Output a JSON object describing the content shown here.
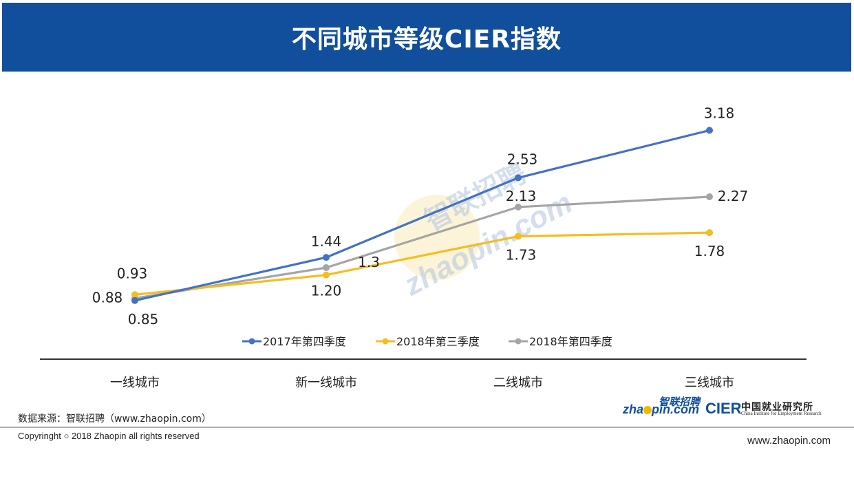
{
  "header": {
    "title": "不同城市等级CIER指数"
  },
  "colors": {
    "header_bg": "#114f9c",
    "series": [
      "#4472c4",
      "#f5bd1f",
      "#a5a5a5"
    ]
  },
  "chart_data": {
    "type": "line",
    "title": "不同城市等级CIER指数",
    "categories": [
      "一线城市",
      "新一线城市",
      "二线城市",
      "三线城市"
    ],
    "series": [
      {
        "name": "2017年第四季度",
        "values": [
          0.85,
          1.44,
          2.53,
          3.18
        ],
        "labels": [
          "0.85",
          "1.44",
          "2.53",
          "3.18"
        ]
      },
      {
        "name": "2018年第三季度",
        "values": [
          0.93,
          1.2,
          1.73,
          1.78
        ],
        "labels": [
          "0.93",
          "1.20",
          "1.73",
          "1.78"
        ]
      },
      {
        "name": "2018年第四季度",
        "values": [
          0.88,
          1.3,
          2.13,
          2.27
        ],
        "labels": [
          "0.88",
          "1.3",
          "2.13",
          "2.27"
        ]
      }
    ],
    "xlabel": "",
    "ylabel": "",
    "ylim": [
      0,
      3.5
    ],
    "grid": false,
    "legend": "bottom"
  },
  "watermark": {
    "text": "智联招聘",
    "sub": "zhaopin.com"
  },
  "footer": {
    "source": "数据来源：智联招聘（www.zhaopin.com）",
    "copyright": "Copyringht ○ 2018 Zhaopin all rights reserved",
    "website": "www.zhaopin.com"
  },
  "logos": {
    "zhaopin_cn": "智联招聘",
    "zhaopin_pre": "zha",
    "zhaopin_post": "pin.com",
    "cier": "CIER",
    "cier_cn": "中国就业研究所",
    "cier_en": "China Institute for Employment Research"
  }
}
